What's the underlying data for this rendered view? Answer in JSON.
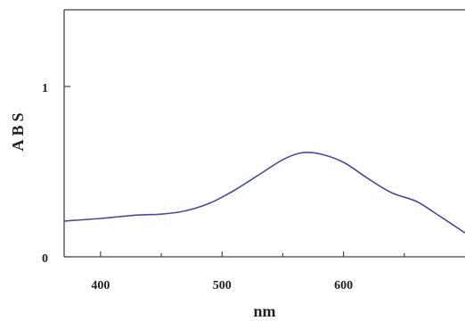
{
  "chart_data": {
    "type": "line",
    "title": "",
    "xlabel": "nm",
    "ylabel": "ABS",
    "xlim": [
      370,
      700
    ],
    "ylim": [
      0,
      1.45
    ],
    "x_ticks": [
      {
        "value": 400,
        "label": "400"
      },
      {
        "value": 500,
        "label": "500"
      },
      {
        "value": 600,
        "label": "600"
      }
    ],
    "x_minor_ticks": [
      450,
      550,
      650
    ],
    "y_ticks": [
      {
        "value": 0,
        "label": "0"
      },
      {
        "value": 1,
        "label": "1"
      }
    ],
    "grid": false,
    "legend": "none",
    "series": [
      {
        "color": "#4a4a9a",
        "x": [
          370,
          400,
          430,
          450,
          470,
          490,
          510,
          530,
          550,
          565,
          580,
          600,
          620,
          640,
          660,
          680,
          700
        ],
        "y": [
          0.21,
          0.225,
          0.245,
          0.25,
          0.27,
          0.315,
          0.39,
          0.48,
          0.57,
          0.61,
          0.605,
          0.555,
          0.46,
          0.375,
          0.325,
          0.235,
          0.14
        ]
      }
    ]
  }
}
